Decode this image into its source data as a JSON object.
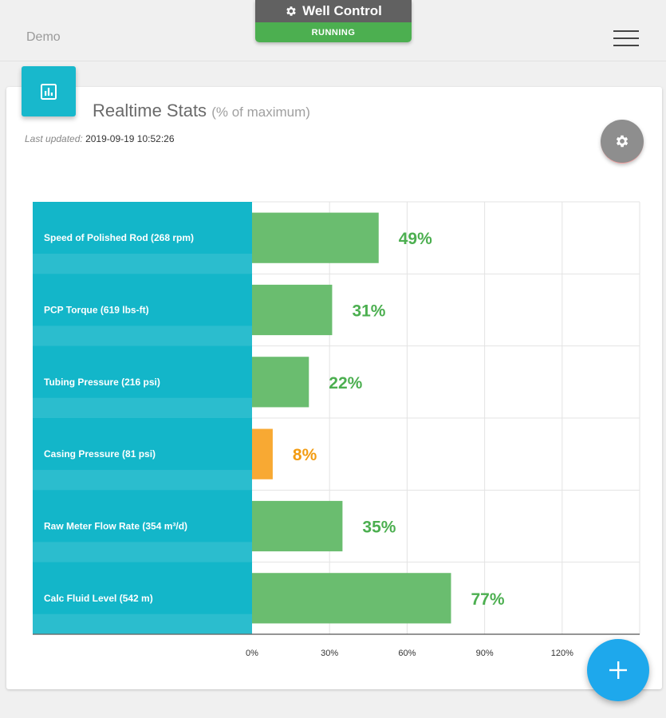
{
  "header": {
    "app_name": "Demo",
    "well_control_title": "Well Control",
    "well_control_status": "RUNNING",
    "menu_icon": "hamburger-menu-icon"
  },
  "card": {
    "badge_icon": "bar-chart-icon",
    "title": "Realtime Stats",
    "title_sub": "(% of maximum)",
    "last_updated_label": "Last updated:",
    "last_updated_value": "2019-09-19 10:52:26",
    "settings_icon": "gear-icon"
  },
  "fab_icon": "plus-icon",
  "colors": {
    "label_panel": "#13b6c9",
    "bar_normal": "#6abd6f",
    "bar_warning": "#f8a933",
    "value_normal": "#4caf50",
    "value_warning": "#f39c12"
  },
  "chart_data": {
    "type": "bar",
    "orientation": "horizontal",
    "categories": [
      "Speed of Polished Rod (268 rpm)",
      "PCP Torque (619 lbs-ft)",
      "Tubing Pressure (216 psi)",
      "Casing Pressure (81 psi)",
      "Raw Meter Flow Rate (354 m³/d)",
      "Calc Fluid Level (542 m)"
    ],
    "values": [
      49,
      31,
      22,
      8,
      35,
      77
    ],
    "value_labels": [
      "49%",
      "31%",
      "22%",
      "8%",
      "35%",
      "77%"
    ],
    "status": [
      "normal",
      "normal",
      "normal",
      "warning",
      "normal",
      "normal"
    ],
    "xlim": [
      0,
      150
    ],
    "x_ticks": [
      0,
      30,
      60,
      90,
      120
    ],
    "x_tick_labels": [
      "0%",
      "30%",
      "60%",
      "90%",
      "120%"
    ],
    "grid": true
  }
}
